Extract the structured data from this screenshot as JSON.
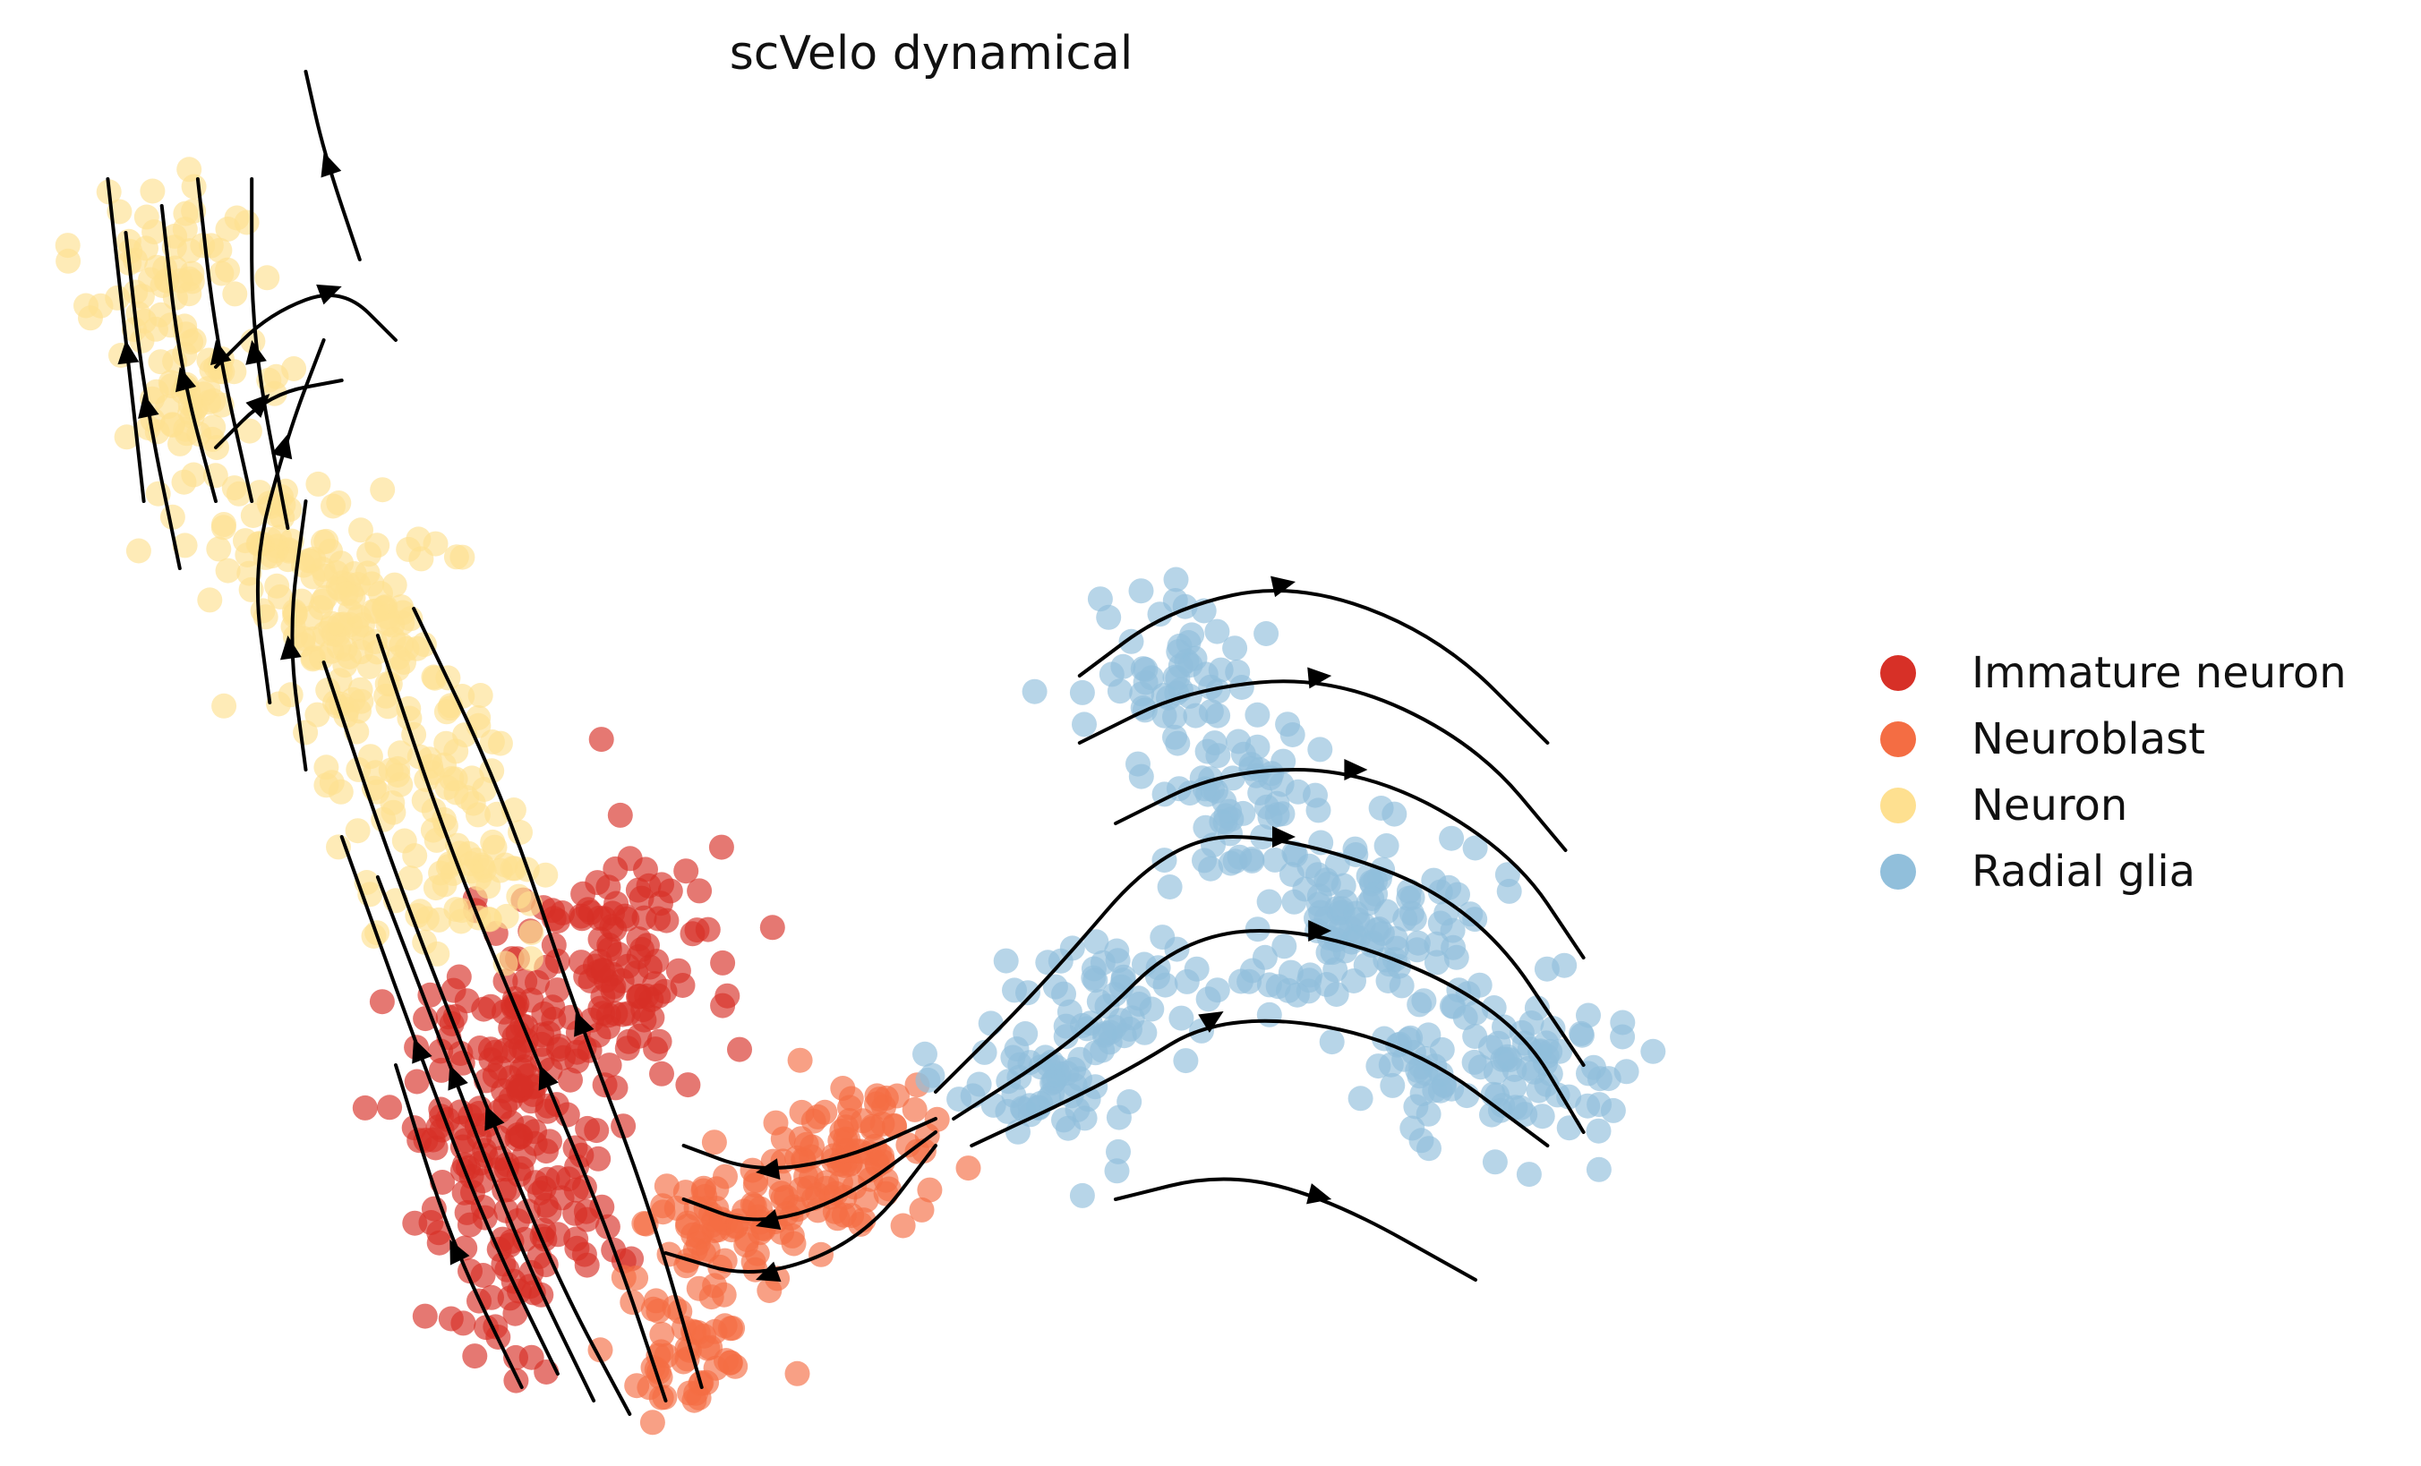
{
  "chart_data": {
    "type": "scatter",
    "title": "scVelo dynamical",
    "xlabel": "",
    "ylabel": "",
    "grid": false,
    "axes_visible": false,
    "overlay": "velocity streamlines with arrowheads",
    "legend_position": "right",
    "series": [
      {
        "name": "Immature neuron",
        "color": "#d73027",
        "centers": [
          [
            0.29,
            0.8
          ],
          [
            0.24,
            0.74
          ],
          [
            0.31,
            0.66
          ],
          [
            0.27,
            0.7
          ],
          [
            0.34,
            0.63
          ],
          [
            0.26,
            0.85
          ]
        ],
        "spread": [
          0.05,
          0.09
        ]
      },
      {
        "name": "Neuroblast",
        "color": "#f46d43",
        "centers": [
          [
            0.38,
            0.84
          ],
          [
            0.43,
            0.8
          ],
          [
            0.47,
            0.78
          ],
          [
            0.36,
            0.93
          ]
        ],
        "spread": [
          0.04,
          0.05
        ]
      },
      {
        "name": "Neuron",
        "color": "#fee090",
        "centers": [
          [
            0.07,
            0.12
          ],
          [
            0.09,
            0.22
          ],
          [
            0.13,
            0.33
          ],
          [
            0.17,
            0.42
          ],
          [
            0.21,
            0.5
          ],
          [
            0.24,
            0.58
          ],
          [
            0.18,
            0.37
          ]
        ],
        "spread": [
          0.05,
          0.06
        ]
      },
      {
        "name": "Radial glia",
        "color": "#91bfdb",
        "centers": [
          [
            0.63,
            0.43
          ],
          [
            0.67,
            0.52
          ],
          [
            0.72,
            0.62
          ],
          [
            0.78,
            0.71
          ],
          [
            0.75,
            0.6
          ],
          [
            0.84,
            0.72
          ],
          [
            0.56,
            0.73
          ],
          [
            0.6,
            0.67
          ]
        ],
        "spread": [
          0.05,
          0.06
        ]
      }
    ]
  }
}
